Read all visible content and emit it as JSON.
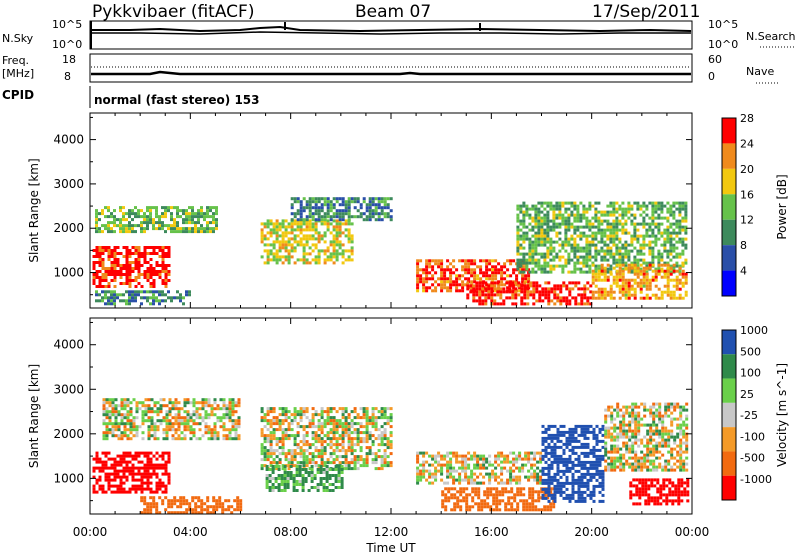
{
  "header": {
    "title": "Pykkvibaer (fitACF)",
    "beam": "Beam 07",
    "date": "17/Sep/2011"
  },
  "noise_panel": {
    "left_label": "N.Sky",
    "left_ticks": [
      "10^5",
      "10^0"
    ],
    "right_label": "N.Search",
    "right_ticks": [
      "10^5",
      "10^0"
    ]
  },
  "freq_panel": {
    "left_label_1": "Freq.",
    "left_label_2": "[MHz]",
    "left_ticks": [
      "18",
      "8"
    ],
    "right_label": "Nave",
    "right_ticks": [
      "60",
      "0"
    ]
  },
  "cpid": {
    "label": "CPID",
    "value": "normal (fast stereo) 153"
  },
  "x_axis": {
    "label": "Time UT",
    "ticks": [
      "00:00",
      "04:00",
      "08:00",
      "12:00",
      "16:00",
      "20:00",
      "00:00"
    ]
  },
  "colors": {
    "power_scale": [
      "#0000ff",
      "#2a4fa8",
      "#3d8a5c",
      "#66c24a",
      "#f2c80f",
      "#f08a1c",
      "#ff0000"
    ],
    "velocity_scale": [
      "#ff0000",
      "#f26a10",
      "#f49a28",
      "#c8c8c8",
      "#6ad04a",
      "#2f8a4a",
      "#2050b0"
    ]
  },
  "chart_data": [
    {
      "type": "heatmap",
      "title": "",
      "xlabel": "Time UT",
      "ylabel": "Slant Range [km]",
      "xlim": [
        "00:00",
        "24:00"
      ],
      "ylim": [
        200,
        4600
      ],
      "yticks": [
        "1000",
        "2000",
        "3000",
        "4000"
      ],
      "colorbar": {
        "label": "Power [dB]",
        "ticks": [
          "4",
          "8",
          "12",
          "16",
          "20",
          "24",
          "28"
        ],
        "range": [
          0,
          30
        ]
      },
      "regions": [
        {
          "t0": 0.1,
          "t1": 3.2,
          "r0": 700,
          "r1": 1600,
          "value": 28
        },
        {
          "t0": 0.2,
          "t1": 5.0,
          "r0": 1900,
          "r1": 2500,
          "value": 14
        },
        {
          "t0": 0.2,
          "t1": 4.0,
          "r0": 300,
          "r1": 600,
          "value": 10
        },
        {
          "t0": 6.8,
          "t1": 10.5,
          "r0": 1200,
          "r1": 2200,
          "value": 18
        },
        {
          "t0": 8.0,
          "t1": 12.0,
          "r0": 2200,
          "r1": 2700,
          "value": 10
        },
        {
          "t0": 13.0,
          "t1": 17.5,
          "r0": 600,
          "r1": 1300,
          "value": 26
        },
        {
          "t0": 15.0,
          "t1": 20.0,
          "r0": 300,
          "r1": 800,
          "value": 28
        },
        {
          "t0": 17.0,
          "t1": 23.8,
          "r0": 1000,
          "r1": 2600,
          "value": 14
        },
        {
          "t0": 20.0,
          "t1": 23.8,
          "r0": 400,
          "r1": 1200,
          "value": 22
        }
      ]
    },
    {
      "type": "heatmap",
      "title": "",
      "xlabel": "Time UT",
      "ylabel": "Slant Range [km]",
      "xlim": [
        "00:00",
        "24:00"
      ],
      "ylim": [
        200,
        4600
      ],
      "yticks": [
        "1000",
        "2000",
        "3000",
        "4000"
      ],
      "colorbar": {
        "label": "Velocity [m s^-1]",
        "ticks": [
          "1000",
          "500",
          "100",
          "25",
          "-25",
          "-100",
          "-500",
          "-1000"
        ],
        "range": [
          -1000,
          1000
        ]
      },
      "regions": [
        {
          "t0": 0.1,
          "t1": 3.2,
          "r0": 700,
          "r1": 1600,
          "value": -800
        },
        {
          "t0": 0.5,
          "t1": 6.0,
          "r0": 1900,
          "r1": 2800,
          "value": 0
        },
        {
          "t0": 2.0,
          "t1": 6.0,
          "r0": 200,
          "r1": 600,
          "value": -300
        },
        {
          "t0": 6.8,
          "t1": 12.0,
          "r0": 1200,
          "r1": 2600,
          "value": 0
        },
        {
          "t0": 7.0,
          "t1": 10.0,
          "r0": 700,
          "r1": 1300,
          "value": 150
        },
        {
          "t0": 13.0,
          "t1": 18.0,
          "r0": 900,
          "r1": 1600,
          "value": 0
        },
        {
          "t0": 14.0,
          "t1": 18.5,
          "r0": 300,
          "r1": 800,
          "value": -300
        },
        {
          "t0": 18.0,
          "t1": 20.5,
          "r0": 500,
          "r1": 2200,
          "value": 700
        },
        {
          "t0": 20.5,
          "t1": 23.8,
          "r0": 1200,
          "r1": 2700,
          "value": 0
        },
        {
          "t0": 21.5,
          "t1": 23.8,
          "r0": 400,
          "r1": 1000,
          "value": -700
        }
      ]
    }
  ]
}
